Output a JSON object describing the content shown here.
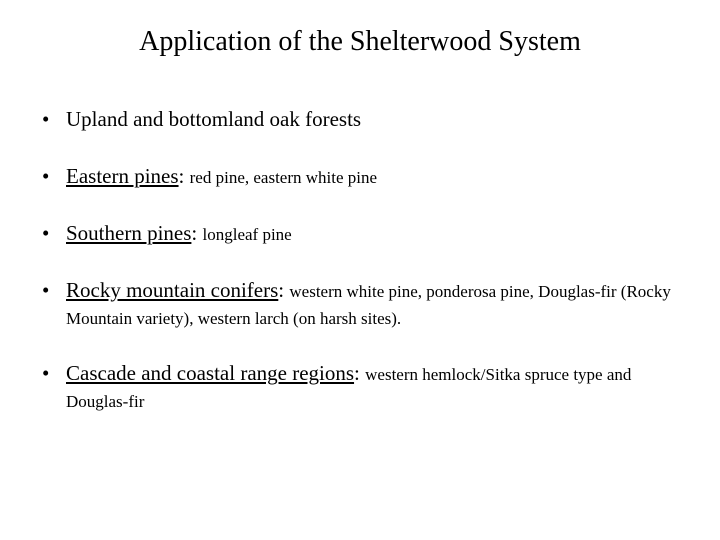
{
  "title": "Application of the Shelterwood System",
  "items": [
    {
      "lead": "Upland and bottomland oak forests",
      "underline": false,
      "detail": ""
    },
    {
      "lead": "Eastern pines",
      "underline": true,
      "detail": "red pine, eastern white pine"
    },
    {
      "lead": "Southern pines",
      "underline": true,
      "detail": "longleaf pine"
    },
    {
      "lead": "Rocky mountain conifers",
      "underline": true,
      "detail": "western white pine, ponderosa pine, Douglas-fir (Rocky Mountain variety), western larch (on harsh sites)."
    },
    {
      "lead": "Cascade and coastal range regions",
      "underline": true,
      "detail": "western hemlock/Sitka spruce type and Douglas-fir"
    }
  ],
  "style": {
    "background_color": "#ffffff",
    "text_color": "#000000",
    "font_family": "Times New Roman",
    "title_fontsize": 28,
    "lead_fontsize": 21,
    "detail_fontsize": 17,
    "slide_width": 720,
    "slide_height": 540
  }
}
